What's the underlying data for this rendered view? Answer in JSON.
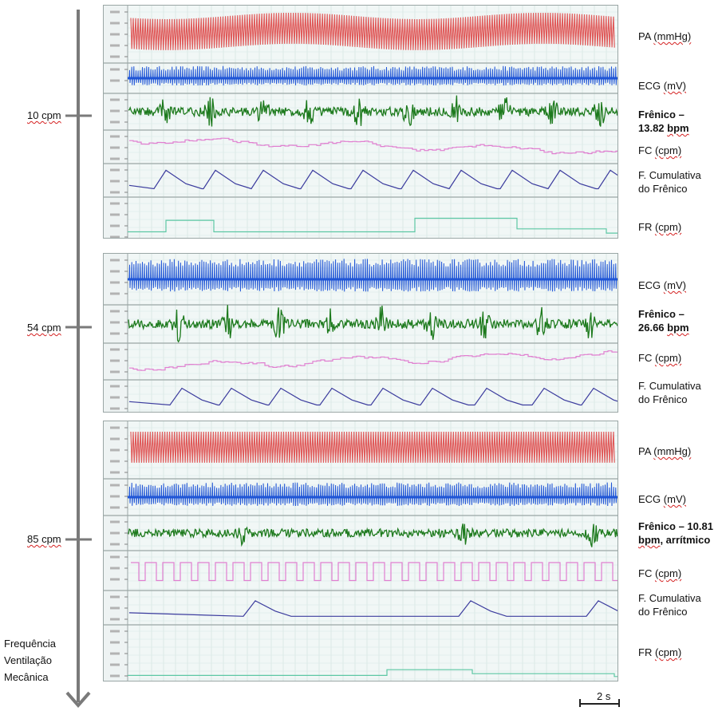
{
  "figure": {
    "segments": [
      {
        "rate_label": "10 cpm",
        "channels": [
          {
            "id": "PA",
            "label": "PA (mmHg)",
            "bold": false
          },
          {
            "id": "ECG",
            "label": "ECG (mV)",
            "bold": false
          },
          {
            "id": "FREN",
            "label": "Frênico –\n13.82 bpm",
            "bold": true
          },
          {
            "id": "FC",
            "label": "FC (cpm)",
            "bold": false
          },
          {
            "id": "FCUM",
            "label": "F. Cumulativa\ndo Frênico",
            "bold": false
          },
          {
            "id": "FR",
            "label": "FR (cpm)",
            "bold": false
          }
        ]
      },
      {
        "rate_label": "54 cpm",
        "channels": [
          {
            "id": "ECG",
            "label": "ECG (mV)",
            "bold": false
          },
          {
            "id": "FREN",
            "label": "Frênico –\n26.66 bpm",
            "bold": true
          },
          {
            "id": "FC",
            "label": "FC (cpm)",
            "bold": false
          },
          {
            "id": "FCUM",
            "label": "F. Cumulativa\ndo Frênico",
            "bold": false
          }
        ]
      },
      {
        "rate_label": "85 cpm",
        "channels": [
          {
            "id": "PA",
            "label": "PA (mmHg)",
            "bold": false
          },
          {
            "id": "ECG",
            "label": "ECG (mV)",
            "bold": false
          },
          {
            "id": "FREN",
            "label": "Frênico – 10.81\nbpm, arrítmico",
            "bold": true
          },
          {
            "id": "FC",
            "label": "FC (cpm)",
            "bold": false
          },
          {
            "id": "FCUM",
            "label": "F. Cumulativa\ndo Frênico",
            "bold": false
          },
          {
            "id": "FR",
            "label": "FR (cpm)",
            "bold": false
          }
        ]
      }
    ],
    "axis_label": "Frequência\nVentilação\nMecânica",
    "scale_bar_label": "2 s",
    "colors": {
      "PA": "#e05a5a",
      "ECG": "#1f55d6",
      "FREN": "#1d7a1d",
      "FC": "#e07fd0",
      "FCUM": "#3c3c9e",
      "FR": "#5cc7a4",
      "axis": "#7a7a7a"
    }
  },
  "chart_data": {
    "type": "line",
    "title": "",
    "xlabel": "",
    "scale_bar_seconds": 2,
    "conditions": [
      {
        "ventilation_rate_cpm": 10,
        "phrenic_burst_rate_bpm": 13.82
      },
      {
        "ventilation_rate_cpm": 54,
        "phrenic_burst_rate_bpm": 26.66
      },
      {
        "ventilation_rate_cpm": 85,
        "phrenic_burst_rate_bpm": 10.81,
        "note": "arrítmico"
      }
    ],
    "series": [
      {
        "name": "PA (mmHg)",
        "units": "mmHg"
      },
      {
        "name": "ECG (mV)",
        "units": "mV"
      },
      {
        "name": "Frênico",
        "units": ""
      },
      {
        "name": "FC (cpm)",
        "units": "cpm"
      },
      {
        "name": "F. Cumulativa do Frênico",
        "units": ""
      },
      {
        "name": "FR (cpm)",
        "units": "cpm"
      }
    ]
  }
}
